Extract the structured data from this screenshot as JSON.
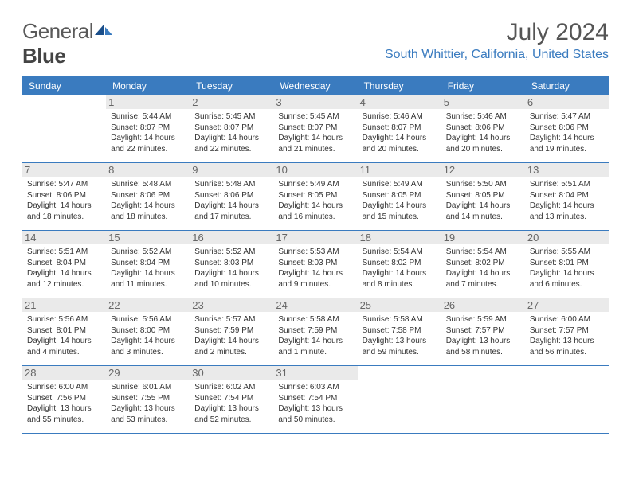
{
  "logo": {
    "text1": "General",
    "text2": "Blue"
  },
  "title": "July 2024",
  "location": "South Whittier, California, United States",
  "colors": {
    "accent": "#3a7bbf",
    "header_text": "#ffffff",
    "daynum_bg": "#eaeaea",
    "text": "#333333",
    "title_color": "#555555"
  },
  "daysOfWeek": [
    "Sunday",
    "Monday",
    "Tuesday",
    "Wednesday",
    "Thursday",
    "Friday",
    "Saturday"
  ],
  "weeks": [
    [
      null,
      {
        "n": "1",
        "sr": "5:44 AM",
        "ss": "8:07 PM",
        "dl": "14 hours and 22 minutes."
      },
      {
        "n": "2",
        "sr": "5:45 AM",
        "ss": "8:07 PM",
        "dl": "14 hours and 22 minutes."
      },
      {
        "n": "3",
        "sr": "5:45 AM",
        "ss": "8:07 PM",
        "dl": "14 hours and 21 minutes."
      },
      {
        "n": "4",
        "sr": "5:46 AM",
        "ss": "8:07 PM",
        "dl": "14 hours and 20 minutes."
      },
      {
        "n": "5",
        "sr": "5:46 AM",
        "ss": "8:06 PM",
        "dl": "14 hours and 20 minutes."
      },
      {
        "n": "6",
        "sr": "5:47 AM",
        "ss": "8:06 PM",
        "dl": "14 hours and 19 minutes."
      }
    ],
    [
      {
        "n": "7",
        "sr": "5:47 AM",
        "ss": "8:06 PM",
        "dl": "14 hours and 18 minutes."
      },
      {
        "n": "8",
        "sr": "5:48 AM",
        "ss": "8:06 PM",
        "dl": "14 hours and 18 minutes."
      },
      {
        "n": "9",
        "sr": "5:48 AM",
        "ss": "8:06 PM",
        "dl": "14 hours and 17 minutes."
      },
      {
        "n": "10",
        "sr": "5:49 AM",
        "ss": "8:05 PM",
        "dl": "14 hours and 16 minutes."
      },
      {
        "n": "11",
        "sr": "5:49 AM",
        "ss": "8:05 PM",
        "dl": "14 hours and 15 minutes."
      },
      {
        "n": "12",
        "sr": "5:50 AM",
        "ss": "8:05 PM",
        "dl": "14 hours and 14 minutes."
      },
      {
        "n": "13",
        "sr": "5:51 AM",
        "ss": "8:04 PM",
        "dl": "14 hours and 13 minutes."
      }
    ],
    [
      {
        "n": "14",
        "sr": "5:51 AM",
        "ss": "8:04 PM",
        "dl": "14 hours and 12 minutes."
      },
      {
        "n": "15",
        "sr": "5:52 AM",
        "ss": "8:04 PM",
        "dl": "14 hours and 11 minutes."
      },
      {
        "n": "16",
        "sr": "5:52 AM",
        "ss": "8:03 PM",
        "dl": "14 hours and 10 minutes."
      },
      {
        "n": "17",
        "sr": "5:53 AM",
        "ss": "8:03 PM",
        "dl": "14 hours and 9 minutes."
      },
      {
        "n": "18",
        "sr": "5:54 AM",
        "ss": "8:02 PM",
        "dl": "14 hours and 8 minutes."
      },
      {
        "n": "19",
        "sr": "5:54 AM",
        "ss": "8:02 PM",
        "dl": "14 hours and 7 minutes."
      },
      {
        "n": "20",
        "sr": "5:55 AM",
        "ss": "8:01 PM",
        "dl": "14 hours and 6 minutes."
      }
    ],
    [
      {
        "n": "21",
        "sr": "5:56 AM",
        "ss": "8:01 PM",
        "dl": "14 hours and 4 minutes."
      },
      {
        "n": "22",
        "sr": "5:56 AM",
        "ss": "8:00 PM",
        "dl": "14 hours and 3 minutes."
      },
      {
        "n": "23",
        "sr": "5:57 AM",
        "ss": "7:59 PM",
        "dl": "14 hours and 2 minutes."
      },
      {
        "n": "24",
        "sr": "5:58 AM",
        "ss": "7:59 PM",
        "dl": "14 hours and 1 minute."
      },
      {
        "n": "25",
        "sr": "5:58 AM",
        "ss": "7:58 PM",
        "dl": "13 hours and 59 minutes."
      },
      {
        "n": "26",
        "sr": "5:59 AM",
        "ss": "7:57 PM",
        "dl": "13 hours and 58 minutes."
      },
      {
        "n": "27",
        "sr": "6:00 AM",
        "ss": "7:57 PM",
        "dl": "13 hours and 56 minutes."
      }
    ],
    [
      {
        "n": "28",
        "sr": "6:00 AM",
        "ss": "7:56 PM",
        "dl": "13 hours and 55 minutes."
      },
      {
        "n": "29",
        "sr": "6:01 AM",
        "ss": "7:55 PM",
        "dl": "13 hours and 53 minutes."
      },
      {
        "n": "30",
        "sr": "6:02 AM",
        "ss": "7:54 PM",
        "dl": "13 hours and 52 minutes."
      },
      {
        "n": "31",
        "sr": "6:03 AM",
        "ss": "7:54 PM",
        "dl": "13 hours and 50 minutes."
      },
      null,
      null,
      null
    ]
  ],
  "labels": {
    "sunrise": "Sunrise:",
    "sunset": "Sunset:",
    "daylight": "Daylight:"
  }
}
